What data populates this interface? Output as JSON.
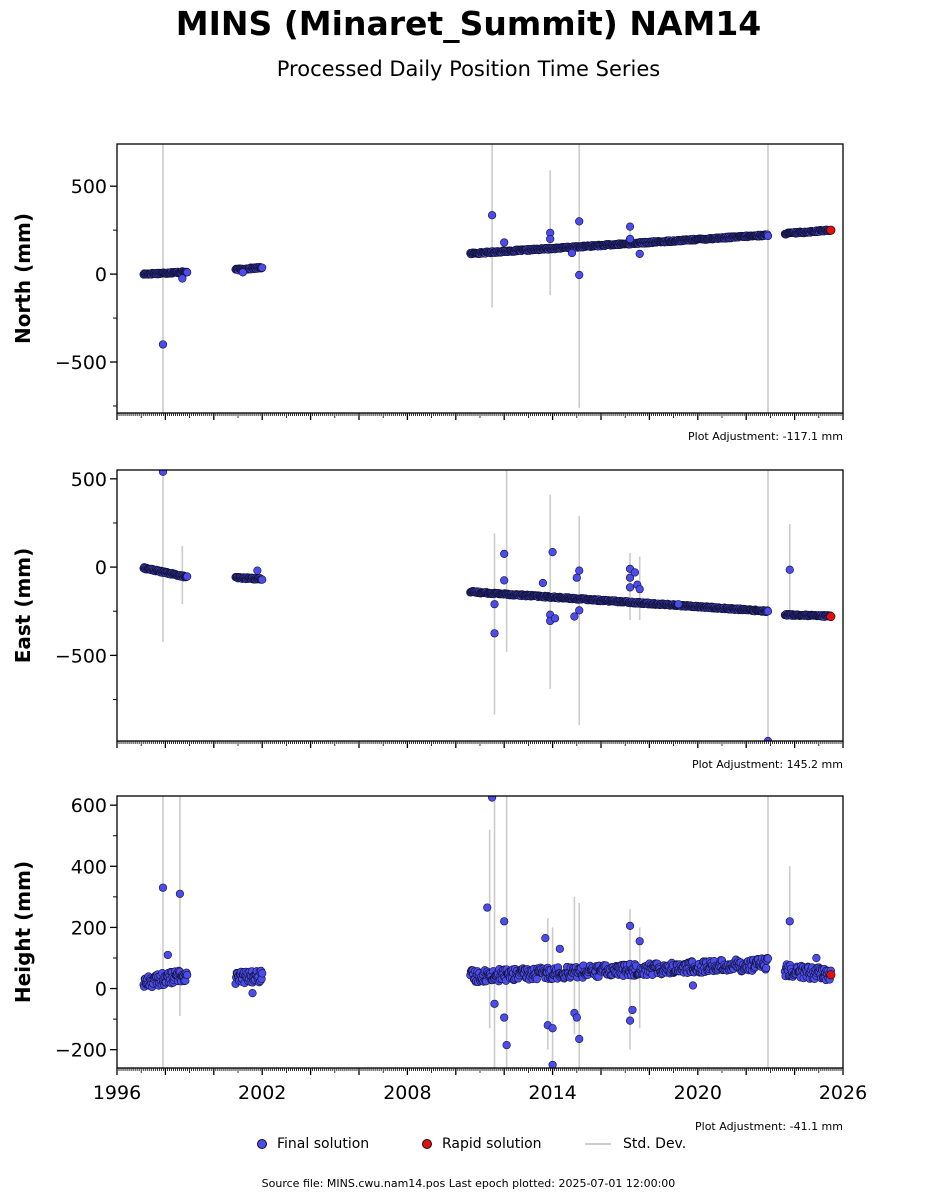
{
  "header": {
    "title": "MINS (Minaret_Summit) NAM14",
    "subtitle": "Processed Daily Position Time Series"
  },
  "legend": {
    "final_label": "Final solution",
    "rapid_label": "Rapid solution",
    "std_label": "Std. Dev."
  },
  "footer": {
    "source": "Source file: MINS.cwu.nam14.pos  Last epoch plotted: 2025-07-01 12:00:00"
  },
  "colors": {
    "final": "#4c4ced",
    "rapid": "#e01010",
    "stddev": "#cccccc",
    "edge": "#111133"
  },
  "chart_data": [
    {
      "type": "scatter",
      "name": "north",
      "ylabel": "North (mm)",
      "adjustment": "Plot Adjustment: -117.1 mm",
      "xlim": [
        1996,
        2026
      ],
      "ylim": [
        -790,
        740
      ],
      "yticks": [
        -500,
        0,
        500
      ],
      "xticks": [
        1996,
        2002,
        2008,
        2014,
        2020,
        2026
      ],
      "segments": [
        {
          "x0": 1997.1,
          "x1": 1998.9,
          "y0": 0,
          "y1": 12
        },
        {
          "x0": 2000.9,
          "x1": 2002.0,
          "y0": 25,
          "y1": 37
        },
        {
          "x0": 2010.6,
          "x1": 2022.9,
          "y0": 117,
          "y1": 222
        },
        {
          "x0": 2023.6,
          "x1": 2025.5,
          "y0": 230,
          "y1": 250
        }
      ],
      "outliers": [
        {
          "x": 1997.9,
          "y": -400
        },
        {
          "x": 1998.7,
          "y": -25
        },
        {
          "x": 2001.2,
          "y": 10
        },
        {
          "x": 2011.5,
          "y": 335
        },
        {
          "x": 2013.9,
          "y": 235
        },
        {
          "x": 2013.9,
          "y": 200
        },
        {
          "x": 2015.1,
          "y": 300
        },
        {
          "x": 2015.1,
          "y": -5
        },
        {
          "x": 2014.8,
          "y": 120
        },
        {
          "x": 2017.2,
          "y": 270
        },
        {
          "x": 2017.2,
          "y": 200
        },
        {
          "x": 2017.6,
          "y": 115
        },
        {
          "x": 2012.0,
          "y": 180
        }
      ],
      "errorbars": [
        {
          "x": 1997.9,
          "low": -790,
          "high": 740
        },
        {
          "x": 2011.5,
          "low": -190,
          "high": 740
        },
        {
          "x": 2013.9,
          "low": -120,
          "high": 590
        },
        {
          "x": 2015.1,
          "low": -760,
          "high": 740
        },
        {
          "x": 2017.2,
          "low": 150,
          "high": 290
        },
        {
          "x": 2022.9,
          "low": -790,
          "high": 740
        }
      ],
      "rapid": [
        {
          "x": 2025.5,
          "y": 250
        }
      ]
    },
    {
      "type": "scatter",
      "name": "east",
      "ylabel": "East (mm)",
      "adjustment": "Plot Adjustment: 145.2 mm",
      "xlim": [
        1996,
        2026
      ],
      "ylim": [
        -985,
        550
      ],
      "yticks": [
        -500,
        0,
        500
      ],
      "xticks": [
        1996,
        2002,
        2008,
        2014,
        2020,
        2026
      ],
      "segments": [
        {
          "x0": 1997.1,
          "x1": 1998.9,
          "y0": -5,
          "y1": -57
        },
        {
          "x0": 2000.9,
          "x1": 2002.0,
          "y0": -60,
          "y1": -67
        },
        {
          "x0": 2010.6,
          "x1": 2022.9,
          "y0": -140,
          "y1": -250
        },
        {
          "x0": 2023.6,
          "x1": 2025.5,
          "y0": -270,
          "y1": -278
        }
      ],
      "outliers": [
        {
          "x": 1997.9,
          "y": 540
        },
        {
          "x": 2001.8,
          "y": -20
        },
        {
          "x": 2011.6,
          "y": -210
        },
        {
          "x": 2011.6,
          "y": -375
        },
        {
          "x": 2012.0,
          "y": 75
        },
        {
          "x": 2012.0,
          "y": -75
        },
        {
          "x": 2013.6,
          "y": -90
        },
        {
          "x": 2013.9,
          "y": -270
        },
        {
          "x": 2013.9,
          "y": -305
        },
        {
          "x": 2014.1,
          "y": -290
        },
        {
          "x": 2014.0,
          "y": 85
        },
        {
          "x": 2014.9,
          "y": -280
        },
        {
          "x": 2015.1,
          "y": -20
        },
        {
          "x": 2015.0,
          "y": -60
        },
        {
          "x": 2015.1,
          "y": -245
        },
        {
          "x": 2017.2,
          "y": -10
        },
        {
          "x": 2017.2,
          "y": -60
        },
        {
          "x": 2017.2,
          "y": -115
        },
        {
          "x": 2017.4,
          "y": -30
        },
        {
          "x": 2017.5,
          "y": -100
        },
        {
          "x": 2017.6,
          "y": -125
        },
        {
          "x": 2019.2,
          "y": -210
        },
        {
          "x": 2022.9,
          "y": -985
        },
        {
          "x": 2023.8,
          "y": -15
        }
      ],
      "errorbars": [
        {
          "x": 1997.9,
          "low": -425,
          "high": 550
        },
        {
          "x": 1998.7,
          "low": -210,
          "high": 120
        },
        {
          "x": 2011.6,
          "low": -835,
          "high": 190
        },
        {
          "x": 2012.1,
          "low": -480,
          "high": 550
        },
        {
          "x": 2013.9,
          "low": -690,
          "high": 410
        },
        {
          "x": 2015.1,
          "low": -895,
          "high": 290
        },
        {
          "x": 2017.2,
          "low": -300,
          "high": 80
        },
        {
          "x": 2017.6,
          "low": -300,
          "high": 60
        },
        {
          "x": 2022.9,
          "low": -985,
          "high": 550
        },
        {
          "x": 2023.8,
          "low": -290,
          "high": 245
        }
      ],
      "rapid": [
        {
          "x": 2025.5,
          "y": -280
        }
      ]
    },
    {
      "type": "scatter",
      "name": "height",
      "ylabel": "Height (mm)",
      "adjustment": "Plot Adjustment: -41.1 mm",
      "xlim": [
        1996,
        2026
      ],
      "ylim": [
        -260,
        630
      ],
      "yticks": [
        -200,
        0,
        200,
        400,
        600
      ],
      "xticks": [
        1996,
        2002,
        2008,
        2014,
        2020,
        2026
      ],
      "segments": [
        {
          "x0": 1997.1,
          "x1": 1998.9,
          "y0": 20,
          "y1": 45
        },
        {
          "x0": 2000.9,
          "x1": 2002.0,
          "y0": 35,
          "y1": 40
        },
        {
          "x0": 2010.6,
          "x1": 2022.9,
          "y0": 40,
          "y1": 80
        },
        {
          "x0": 2023.6,
          "x1": 2025.5,
          "y0": 60,
          "y1": 45
        }
      ],
      "outliers": [
        {
          "x": 1997.9,
          "y": 330
        },
        {
          "x": 1998.6,
          "y": 310
        },
        {
          "x": 1998.1,
          "y": 110
        },
        {
          "x": 2001.6,
          "y": -15
        },
        {
          "x": 2011.3,
          "y": 265
        },
        {
          "x": 2011.5,
          "y": 625
        },
        {
          "x": 2011.6,
          "y": -50
        },
        {
          "x": 2012.0,
          "y": 220
        },
        {
          "x": 2012.0,
          "y": -95
        },
        {
          "x": 2012.1,
          "y": -185
        },
        {
          "x": 2013.7,
          "y": 165
        },
        {
          "x": 2013.8,
          "y": -120
        },
        {
          "x": 2014.0,
          "y": -130
        },
        {
          "x": 2014.0,
          "y": -250
        },
        {
          "x": 2014.3,
          "y": 130
        },
        {
          "x": 2014.9,
          "y": -80
        },
        {
          "x": 2015.0,
          "y": -95
        },
        {
          "x": 2015.1,
          "y": -165
        },
        {
          "x": 2017.2,
          "y": 205
        },
        {
          "x": 2017.2,
          "y": -105
        },
        {
          "x": 2017.3,
          "y": -70
        },
        {
          "x": 2017.6,
          "y": 155
        },
        {
          "x": 2019.8,
          "y": 10
        },
        {
          "x": 2023.8,
          "y": 220
        },
        {
          "x": 2024.9,
          "y": 100
        }
      ],
      "errorbars": [
        {
          "x": 1997.9,
          "low": -260,
          "high": 630
        },
        {
          "x": 1998.6,
          "low": -90,
          "high": 630
        },
        {
          "x": 2011.4,
          "low": -130,
          "high": 520
        },
        {
          "x": 2011.6,
          "low": -260,
          "high": 630
        },
        {
          "x": 2012.1,
          "low": -260,
          "high": 630
        },
        {
          "x": 2013.8,
          "low": -200,
          "high": 230
        },
        {
          "x": 2014.0,
          "low": -260,
          "high": 200
        },
        {
          "x": 2014.9,
          "low": -150,
          "high": 300
        },
        {
          "x": 2015.1,
          "low": -260,
          "high": 280
        },
        {
          "x": 2017.2,
          "low": -200,
          "high": 260
        },
        {
          "x": 2017.6,
          "low": -130,
          "high": 200
        },
        {
          "x": 2022.9,
          "low": -260,
          "high": 630
        },
        {
          "x": 2023.8,
          "low": 40,
          "high": 400
        }
      ],
      "rapid": [
        {
          "x": 2025.5,
          "y": 45
        }
      ]
    }
  ]
}
